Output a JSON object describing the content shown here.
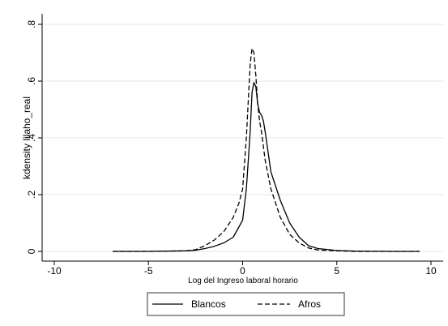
{
  "chart_data": {
    "type": "line",
    "title": "",
    "xlabel": "Log del Ingreso laboral horario",
    "ylabel": "kdensity lilaho_real",
    "xlim": [
      -10,
      10
    ],
    "ylim": [
      0,
      0.8
    ],
    "xticks": [
      -10,
      -5,
      0,
      5,
      10
    ],
    "xtick_labels": [
      "-10",
      "-5",
      "0",
      "5",
      "10"
    ],
    "yticks": [
      0,
      0.2,
      0.4,
      0.6,
      0.8
    ],
    "ytick_labels": [
      "0",
      ".2",
      ".4",
      ".6",
      ".8"
    ],
    "grid": "horizontal",
    "legend_position": "bottom",
    "series": [
      {
        "name": "Blancos",
        "style": "solid",
        "color": "#000000",
        "x": [
          -6.9,
          -5,
          -3,
          -2.5,
          -2,
          -1.5,
          -1.0,
          -0.5,
          0.0,
          0.2,
          0.4,
          0.5,
          0.6,
          0.7,
          0.8,
          0.9,
          1.0,
          1.1,
          1.2,
          1.5,
          2.0,
          2.5,
          3.0,
          3.5,
          4.0,
          5.0,
          6.0,
          8.0,
          9.4
        ],
        "y": [
          0.0,
          0.0,
          0.002,
          0.004,
          0.01,
          0.018,
          0.03,
          0.05,
          0.11,
          0.22,
          0.42,
          0.56,
          0.595,
          0.58,
          0.52,
          0.49,
          0.48,
          0.46,
          0.42,
          0.28,
          0.18,
          0.1,
          0.05,
          0.02,
          0.01,
          0.003,
          0.001,
          0.0,
          0.0
        ]
      },
      {
        "name": "Afros",
        "style": "dashed",
        "color": "#000000",
        "x": [
          -6.9,
          -5,
          -3,
          -2.5,
          -2,
          -1.5,
          -1.0,
          -0.5,
          -0.2,
          0.0,
          0.2,
          0.4,
          0.5,
          0.6,
          0.7,
          0.8,
          0.9,
          1.0,
          1.2,
          1.5,
          2.0,
          2.5,
          3.0,
          3.5,
          4.0,
          5.0,
          6.0,
          8.0,
          9.4
        ],
        "y": [
          0.0,
          0.0,
          0.002,
          0.006,
          0.02,
          0.04,
          0.07,
          0.12,
          0.17,
          0.22,
          0.4,
          0.66,
          0.715,
          0.7,
          0.62,
          0.52,
          0.46,
          0.42,
          0.32,
          0.22,
          0.12,
          0.06,
          0.03,
          0.012,
          0.005,
          0.002,
          0.0,
          0.0,
          0.0
        ]
      }
    ]
  }
}
